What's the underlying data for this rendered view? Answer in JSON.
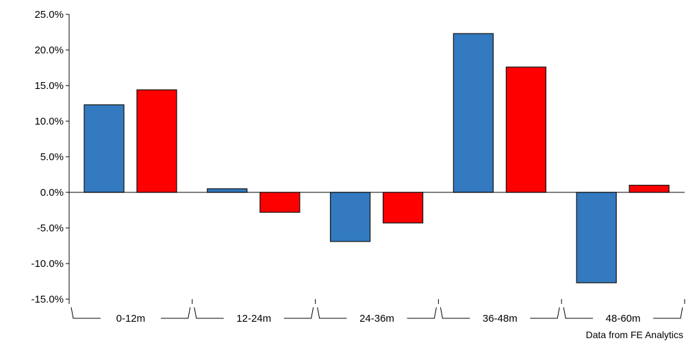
{
  "chart_data": {
    "type": "bar",
    "title": "",
    "xlabel": "",
    "ylabel": "",
    "categories": [
      "0-12m",
      "12-24m",
      "24-36m",
      "36-48m",
      "48-60m"
    ],
    "series": [
      {
        "color": "#337ac0",
        "values": [
          12.3,
          0.5,
          -6.9,
          22.3,
          -12.7
        ]
      },
      {
        "color": "#ff0000",
        "values": [
          14.4,
          -2.8,
          -4.3,
          17.6,
          1.0
        ]
      }
    ],
    "ylim": [
      -15,
      25
    ],
    "yticks": [
      25,
      20,
      15,
      10,
      5,
      0,
      -5,
      -10,
      -15
    ],
    "ytick_labels": [
      "25.0%",
      "20.0%",
      "15.0%",
      "10.0%",
      "5.0%",
      "0.0%",
      "-5.0%",
      "-10.0%",
      "-15.0%"
    ],
    "grid": false,
    "legend": "none"
  },
  "source_note": "Data from FE Analytics"
}
